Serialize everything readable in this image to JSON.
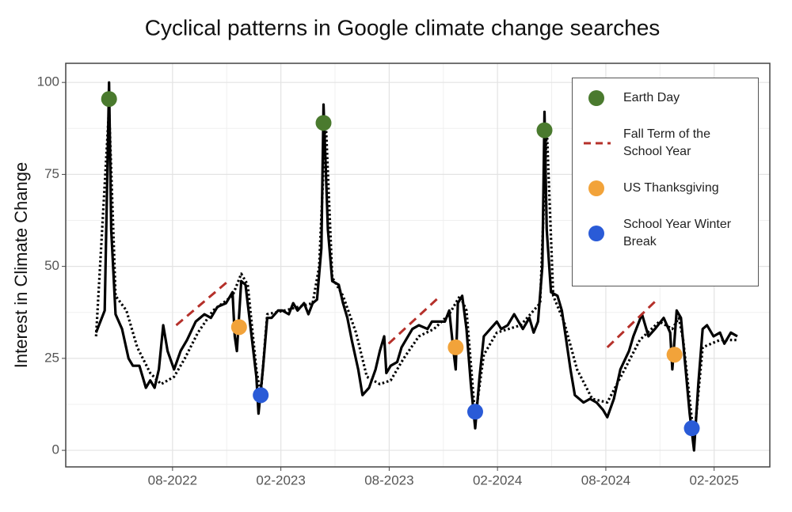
{
  "chart_data": {
    "type": "line",
    "title": "Cyclical patterns in Google climate change searches",
    "ylabel": "Interest in Climate Change",
    "xlim": [
      2022.09,
      2025.34
    ],
    "ylim": [
      -4.5,
      105.2
    ],
    "xticks": [
      {
        "value": 2022.583,
        "label": "08-2022"
      },
      {
        "value": 2023.083,
        "label": "02-2023"
      },
      {
        "value": 2023.583,
        "label": "08-2023"
      },
      {
        "value": 2024.083,
        "label": "02-2024"
      },
      {
        "value": 2024.583,
        "label": "08-2024"
      },
      {
        "value": 2025.083,
        "label": "02-2025"
      }
    ],
    "yticks": [
      0,
      25,
      50,
      75,
      100
    ],
    "grid": true,
    "series": [
      {
        "type": "line",
        "style": "solid",
        "color": "#000000",
        "x": [
          2022.23,
          2022.27,
          2022.29,
          2022.3,
          2022.32,
          2022.35,
          2022.38,
          2022.4,
          2022.43,
          2022.46,
          2022.48,
          2022.5,
          2022.52,
          2022.54,
          2022.56,
          2022.59,
          2022.62,
          2022.65,
          2022.69,
          2022.73,
          2022.76,
          2022.79,
          2022.83,
          2022.86,
          2022.87,
          2022.88,
          2022.9,
          2022.92,
          2022.94,
          2022.97,
          2022.98,
          2023.0,
          2023.02,
          2023.04,
          2023.07,
          2023.09,
          2023.12,
          2023.14,
          2023.16,
          2023.19,
          2023.21,
          2023.23,
          2023.25,
          2023.27,
          2023.28,
          2023.3,
          2023.32,
          2023.35,
          2023.37,
          2023.39,
          2023.41,
          2023.44,
          2023.46,
          2023.49,
          2023.52,
          2023.54,
          2023.56,
          2023.57,
          2023.59,
          2023.62,
          2023.64,
          2023.66,
          2023.69,
          2023.72,
          2023.76,
          2023.78,
          2023.81,
          2023.84,
          2023.86,
          2023.88,
          2023.89,
          2023.9,
          2023.92,
          2023.94,
          2023.96,
          2023.98,
          2024.0,
          2024.02,
          2024.05,
          2024.08,
          2024.1,
          2024.13,
          2024.16,
          2024.18,
          2024.2,
          2024.23,
          2024.25,
          2024.27,
          2024.29,
          2024.3,
          2024.31,
          2024.33,
          2024.36,
          2024.38,
          2024.4,
          2024.42,
          2024.44,
          2024.48,
          2024.51,
          2024.54,
          2024.57,
          2024.59,
          2024.62,
          2024.65,
          2024.69,
          2024.71,
          2024.75,
          2024.78,
          2024.81,
          2024.85,
          2024.88,
          2024.89,
          2024.91,
          2024.93,
          2024.95,
          2024.97,
          2024.99,
          2025.01,
          2025.03,
          2025.05,
          2025.08,
          2025.11,
          2025.13,
          2025.16,
          2025.19
        ],
        "values": [
          32,
          38,
          100,
          60,
          37,
          33,
          25,
          23,
          23,
          17,
          19,
          17,
          22,
          34,
          27,
          22,
          27,
          30,
          35,
          37,
          36,
          39,
          40,
          43,
          31,
          27,
          46,
          45,
          35,
          20,
          10,
          22,
          36,
          36,
          38,
          38,
          37,
          40,
          38,
          40,
          37,
          40,
          41,
          55,
          94,
          60,
          46,
          45,
          40,
          36,
          30,
          22,
          15,
          17,
          22,
          27,
          31,
          21,
          23,
          24,
          28,
          30,
          33,
          34,
          33,
          35,
          35,
          35,
          38,
          27,
          22,
          40,
          42,
          33,
          18,
          6,
          20,
          31,
          33,
          35,
          33,
          34,
          37,
          35,
          33,
          36,
          32,
          35,
          50,
          92,
          60,
          43,
          42,
          38,
          30,
          22,
          15,
          13,
          14,
          13,
          11,
          9,
          14,
          22,
          27,
          31,
          37,
          31,
          33,
          36,
          32,
          22,
          38,
          36,
          23,
          10,
          0,
          18,
          33,
          34,
          31,
          32,
          29,
          32,
          31
        ]
      },
      {
        "type": "line",
        "style": "dotted",
        "color": "#000000",
        "x": [
          2022.23,
          2022.29,
          2022.32,
          2022.37,
          2022.42,
          2022.48,
          2022.53,
          2022.59,
          2022.64,
          2022.7,
          2022.77,
          2022.86,
          2022.9,
          2022.93,
          2022.97,
          2022.99,
          2023.02,
          2023.1,
          2023.23,
          2023.26,
          2023.29,
          2023.32,
          2023.37,
          2023.43,
          2023.48,
          2023.54,
          2023.59,
          2023.65,
          2023.72,
          2023.79,
          2023.86,
          2023.91,
          2023.94,
          2023.98,
          2024.02,
          2024.08,
          2024.19,
          2024.28,
          2024.31,
          2024.34,
          2024.39,
          2024.45,
          2024.52,
          2024.59,
          2024.67,
          2024.74,
          2024.83,
          2024.89,
          2024.92,
          2024.94,
          2024.99,
          2025.03,
          2025.11,
          2025.19
        ],
        "values": [
          31,
          93,
          42,
          38,
          28,
          21,
          18,
          20,
          25,
          32,
          38,
          42,
          48,
          45,
          22,
          15,
          37,
          38,
          40,
          50,
          90,
          47,
          42,
          32,
          20,
          18,
          19,
          25,
          31,
          33,
          37,
          42,
          38,
          9,
          26,
          32,
          34,
          40,
          88,
          42,
          35,
          22,
          14,
          13,
          22,
          30,
          35,
          33,
          36,
          30,
          3,
          28,
          30,
          30
        ]
      },
      {
        "type": "dashed",
        "name": "Fall Term of the School Year",
        "color": "#b5302a",
        "segments": [
          {
            "x": [
              2022.6,
              2022.84
            ],
            "values": [
              34,
              46
            ]
          },
          {
            "x": [
              2023.58,
              2023.82
            ],
            "values": [
              29,
              42
            ]
          },
          {
            "x": [
              2024.59,
              2024.82
            ],
            "values": [
              28,
              41
            ]
          }
        ]
      },
      {
        "type": "scatter",
        "name": "Earth Day",
        "color": "#4a7a2e",
        "x": [
          2022.29,
          2023.28,
          2024.3
        ],
        "values": [
          95.5,
          89,
          87
        ]
      },
      {
        "type": "scatter",
        "name": "US Thanksgiving",
        "color": "#f2a33a",
        "x": [
          2022.89,
          2023.89,
          2024.9
        ],
        "values": [
          33.5,
          28,
          26
        ]
      },
      {
        "type": "scatter",
        "name": "School Year Winter Break",
        "color": "#2a5bd7",
        "x": [
          2022.99,
          2023.98,
          2024.98
        ],
        "values": [
          15,
          10.5,
          6
        ]
      }
    ]
  }
}
